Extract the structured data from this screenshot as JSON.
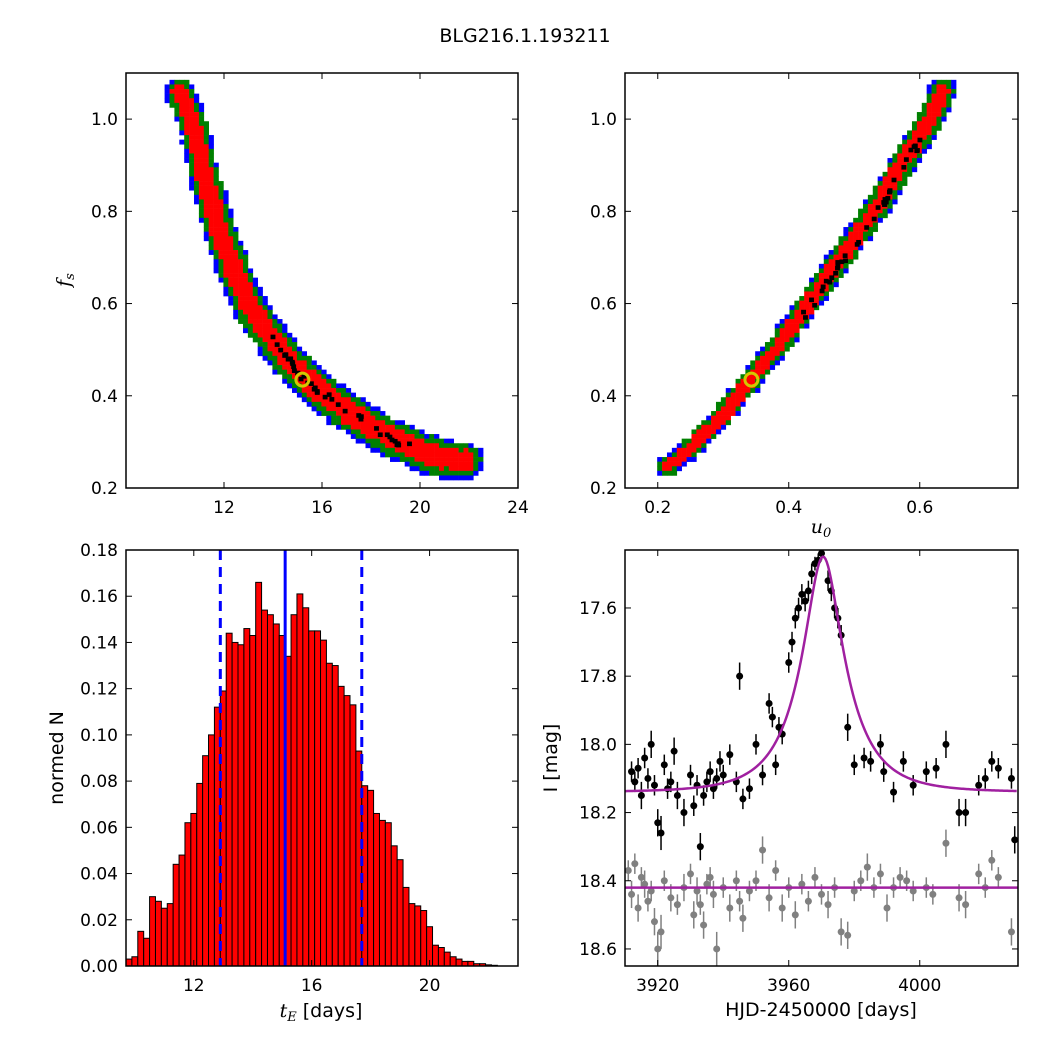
{
  "figure_title": "BLG216.1.193211",
  "colors": {
    "sigma1": "#ff0000",
    "sigma2": "#008000",
    "sigma3": "#0000ff",
    "top_samples": "#000000",
    "best_fit_marker": "#d4c800",
    "histogram_bar": "#ff0000",
    "median_line": "#0000ff",
    "model_curve": "#a020a0",
    "event_points": "#000000",
    "baseline_points": "#808080"
  },
  "chart_data": [
    {
      "type": "heatmap",
      "panel": "top-left",
      "xlabel": "",
      "ylabel": "f_s",
      "xlim": [
        8,
        24
      ],
      "ylim": [
        0.2,
        1.1
      ],
      "x_ticks": [
        "12",
        "16",
        "20",
        "24"
      ],
      "y_ticks": [
        "0.2",
        "0.4",
        "0.6",
        "0.8",
        "1.0"
      ],
      "best_fit": {
        "x": 15.2,
        "y": 0.435
      },
      "ridge": [
        [
          10.2,
          1.06
        ],
        [
          10.8,
          0.98
        ],
        [
          11.2,
          0.88
        ],
        [
          11.6,
          0.8
        ],
        [
          12.0,
          0.73
        ],
        [
          12.5,
          0.66
        ],
        [
          13.0,
          0.6
        ],
        [
          13.6,
          0.55
        ],
        [
          14.3,
          0.5
        ],
        [
          15.0,
          0.455
        ],
        [
          15.8,
          0.415
        ],
        [
          16.8,
          0.375
        ],
        [
          17.8,
          0.34
        ],
        [
          18.8,
          0.31
        ],
        [
          19.8,
          0.285
        ],
        [
          20.8,
          0.265
        ],
        [
          21.8,
          0.26
        ]
      ],
      "confidence_regions": [
        "1 sigma (red)",
        "2 sigma (green)",
        "3 sigma (blue)"
      ]
    },
    {
      "type": "heatmap",
      "panel": "top-right",
      "xlabel": "u_0",
      "ylabel": "",
      "xlim": [
        0.15,
        0.75
      ],
      "ylim": [
        0.2,
        1.1
      ],
      "x_ticks": [
        "0.2",
        "0.4",
        "0.6"
      ],
      "y_ticks": [
        "0.2",
        "0.4",
        "0.6",
        "0.8",
        "1.0"
      ],
      "best_fit": {
        "x": 0.343,
        "y": 0.435
      },
      "ridge": [
        [
          0.215,
          0.245
        ],
        [
          0.26,
          0.3
        ],
        [
          0.3,
          0.36
        ],
        [
          0.343,
          0.435
        ],
        [
          0.39,
          0.52
        ],
        [
          0.44,
          0.62
        ],
        [
          0.49,
          0.72
        ],
        [
          0.54,
          0.82
        ],
        [
          0.58,
          0.92
        ],
        [
          0.62,
          1.01
        ],
        [
          0.635,
          1.06
        ]
      ],
      "confidence_regions": [
        "1 sigma (red)",
        "2 sigma (green)",
        "3 sigma (blue)"
      ]
    },
    {
      "type": "bar",
      "panel": "bottom-left",
      "xlabel": "t_E [days]",
      "ylabel": "normed N",
      "xlim": [
        9.7,
        23.0
      ],
      "ylim": [
        0,
        0.18
      ],
      "bin_width": 0.2,
      "bin_start": 9.7,
      "x_ticks": [
        "12",
        "16",
        "20"
      ],
      "y_ticks": [
        "0.00",
        "0.02",
        "0.04",
        "0.06",
        "0.08",
        "0.10",
        "0.12",
        "0.14",
        "0.16",
        "0.18"
      ],
      "values": [
        0.003,
        0.004,
        0.015,
        0.012,
        0.03,
        0.028,
        0.025,
        0.027,
        0.044,
        0.048,
        0.062,
        0.066,
        0.079,
        0.091,
        0.1,
        0.112,
        0.119,
        0.144,
        0.14,
        0.139,
        0.146,
        0.143,
        0.166,
        0.154,
        0.152,
        0.148,
        0.143,
        0.134,
        0.152,
        0.161,
        0.155,
        0.145,
        0.145,
        0.141,
        0.131,
        0.13,
        0.121,
        0.117,
        0.113,
        0.093,
        0.078,
        0.076,
        0.066,
        0.063,
        0.062,
        0.052,
        0.046,
        0.034,
        0.027,
        0.026,
        0.024,
        0.017,
        0.009,
        0.008,
        0.006,
        0.004,
        0.003,
        0.002,
        0.002,
        0.001,
        0.001,
        0.0005,
        0.0003
      ],
      "median": 15.1,
      "interval": [
        12.9,
        17.7
      ]
    },
    {
      "type": "scatter",
      "panel": "bottom-right",
      "xlabel": "HJD-2450000 [days]",
      "ylabel": "I [mag]",
      "xlim": [
        3910,
        4030
      ],
      "ylim": [
        18.65,
        17.43
      ],
      "x_ticks": [
        "3920",
        "3960",
        "4000"
      ],
      "y_ticks": [
        "17.6",
        "17.8",
        "18.0",
        "18.2",
        "18.4",
        "18.6"
      ],
      "model": {
        "baseline": 18.14,
        "t0": 3970.5,
        "tE": 15.2,
        "u0": 0.343,
        "fs": 0.435
      },
      "event_points": [
        [
          3912,
          18.08,
          0.03
        ],
        [
          3913,
          18.11,
          0.03
        ],
        [
          3914,
          18.07,
          0.03
        ],
        [
          3915,
          18.15,
          0.04
        ],
        [
          3916,
          18.04,
          0.03
        ],
        [
          3917,
          18.1,
          0.03
        ],
        [
          3918,
          18.0,
          0.04
        ],
        [
          3919,
          18.12,
          0.03
        ],
        [
          3920,
          18.23,
          0.04
        ],
        [
          3921,
          18.26,
          0.05
        ],
        [
          3922,
          18.06,
          0.03
        ],
        [
          3923,
          18.13,
          0.03
        ],
        [
          3924,
          18.11,
          0.03
        ],
        [
          3925,
          18.02,
          0.04
        ],
        [
          3926,
          18.15,
          0.04
        ],
        [
          3928,
          18.2,
          0.04
        ],
        [
          3930,
          18.09,
          0.03
        ],
        [
          3931,
          18.18,
          0.03
        ],
        [
          3932,
          18.12,
          0.03
        ],
        [
          3933,
          18.3,
          0.04
        ],
        [
          3934,
          18.15,
          0.03
        ],
        [
          3935,
          18.11,
          0.03
        ],
        [
          3936,
          18.08,
          0.03
        ],
        [
          3937,
          18.13,
          0.03
        ],
        [
          3938,
          18.1,
          0.03
        ],
        [
          3939,
          18.05,
          0.03
        ],
        [
          3940,
          18.09,
          0.03
        ],
        [
          3942,
          18.03,
          0.03
        ],
        [
          3944,
          18.11,
          0.03
        ],
        [
          3945,
          17.8,
          0.04
        ],
        [
          3946,
          18.16,
          0.03
        ],
        [
          3948,
          18.13,
          0.03
        ],
        [
          3950,
          18.0,
          0.03
        ],
        [
          3952,
          18.09,
          0.03
        ],
        [
          3954,
          17.88,
          0.03
        ],
        [
          3955,
          17.92,
          0.03
        ],
        [
          3956,
          18.06,
          0.03
        ],
        [
          3957,
          17.95,
          0.03
        ],
        [
          3958,
          17.97,
          0.03
        ],
        [
          3960,
          17.76,
          0.03
        ],
        [
          3961,
          17.7,
          0.03
        ],
        [
          3962,
          17.63,
          0.03
        ],
        [
          3963,
          17.6,
          0.03
        ],
        [
          3964,
          17.56,
          0.03
        ],
        [
          3965,
          17.58,
          0.03
        ],
        [
          3966,
          17.55,
          0.03
        ],
        [
          3967,
          17.5,
          0.03
        ],
        [
          3968,
          17.47,
          0.02
        ],
        [
          3969,
          17.46,
          0.02
        ],
        [
          3970,
          17.44,
          0.02
        ],
        [
          3972,
          17.52,
          0.03
        ],
        [
          3973,
          17.55,
          0.03
        ],
        [
          3974,
          17.6,
          0.03
        ],
        [
          3975,
          17.63,
          0.03
        ],
        [
          3976,
          17.68,
          0.03
        ],
        [
          3978,
          17.95,
          0.04
        ],
        [
          3980,
          18.06,
          0.03
        ],
        [
          3983,
          18.04,
          0.03
        ],
        [
          3985,
          18.05,
          0.03
        ],
        [
          3988,
          18.0,
          0.03
        ],
        [
          3989,
          18.08,
          0.03
        ],
        [
          3992,
          18.14,
          0.03
        ],
        [
          3995,
          18.05,
          0.03
        ],
        [
          3998,
          18.12,
          0.03
        ],
        [
          4002,
          18.08,
          0.03
        ],
        [
          4005,
          18.07,
          0.03
        ],
        [
          4008,
          18.0,
          0.04
        ],
        [
          4012,
          18.2,
          0.04
        ],
        [
          4014,
          18.2,
          0.04
        ],
        [
          4018,
          18.12,
          0.03
        ],
        [
          4020,
          18.1,
          0.03
        ],
        [
          4022,
          18.05,
          0.03
        ],
        [
          4024,
          18.07,
          0.03
        ],
        [
          4028,
          18.1,
          0.03
        ],
        [
          4029,
          18.28,
          0.04
        ]
      ],
      "baseline_points": [
        [
          3911,
          18.37,
          0.03
        ],
        [
          3912,
          18.44,
          0.04
        ],
        [
          3913,
          18.35,
          0.03
        ],
        [
          3914,
          18.48,
          0.04
        ],
        [
          3915,
          18.39,
          0.03
        ],
        [
          3916,
          18.41,
          0.04
        ],
        [
          3917,
          18.46,
          0.03
        ],
        [
          3918,
          18.43,
          0.03
        ],
        [
          3919,
          18.52,
          0.04
        ],
        [
          3920,
          18.6,
          0.05
        ],
        [
          3921,
          18.55,
          0.05
        ],
        [
          3922,
          18.4,
          0.03
        ],
        [
          3924,
          18.45,
          0.04
        ],
        [
          3926,
          18.47,
          0.03
        ],
        [
          3928,
          18.42,
          0.04
        ],
        [
          3930,
          18.38,
          0.03
        ],
        [
          3931,
          18.5,
          0.04
        ],
        [
          3932,
          18.43,
          0.04
        ],
        [
          3933,
          18.47,
          0.03
        ],
        [
          3934,
          18.53,
          0.04
        ],
        [
          3935,
          18.41,
          0.03
        ],
        [
          3936,
          18.39,
          0.03
        ],
        [
          3937,
          18.44,
          0.04
        ],
        [
          3938,
          18.6,
          0.05
        ],
        [
          3940,
          18.42,
          0.03
        ],
        [
          3942,
          18.48,
          0.04
        ],
        [
          3944,
          18.4,
          0.03
        ],
        [
          3945,
          18.46,
          0.03
        ],
        [
          3946,
          18.51,
          0.04
        ],
        [
          3948,
          18.43,
          0.03
        ],
        [
          3950,
          18.4,
          0.03
        ],
        [
          3952,
          18.31,
          0.04
        ],
        [
          3954,
          18.45,
          0.04
        ],
        [
          3956,
          18.37,
          0.03
        ],
        [
          3958,
          18.48,
          0.04
        ],
        [
          3960,
          18.42,
          0.03
        ],
        [
          3962,
          18.5,
          0.04
        ],
        [
          3964,
          18.41,
          0.03
        ],
        [
          3966,
          18.46,
          0.03
        ],
        [
          3968,
          18.39,
          0.03
        ],
        [
          3970,
          18.44,
          0.03
        ],
        [
          3972,
          18.47,
          0.04
        ],
        [
          3974,
          18.42,
          0.03
        ],
        [
          3976,
          18.55,
          0.04
        ],
        [
          3978,
          18.56,
          0.04
        ],
        [
          3980,
          18.43,
          0.03
        ],
        [
          3982,
          18.4,
          0.03
        ],
        [
          3984,
          18.36,
          0.04
        ],
        [
          3986,
          18.42,
          0.03
        ],
        [
          3988,
          18.38,
          0.03
        ],
        [
          3990,
          18.48,
          0.04
        ],
        [
          3992,
          18.42,
          0.03
        ],
        [
          3994,
          18.39,
          0.03
        ],
        [
          3996,
          18.4,
          0.03
        ],
        [
          3998,
          18.43,
          0.03
        ],
        [
          4002,
          18.42,
          0.03
        ],
        [
          4004,
          18.44,
          0.03
        ],
        [
          4008,
          18.29,
          0.04
        ],
        [
          4012,
          18.45,
          0.04
        ],
        [
          4014,
          18.47,
          0.04
        ],
        [
          4018,
          18.38,
          0.03
        ],
        [
          4020,
          18.42,
          0.03
        ],
        [
          4022,
          18.34,
          0.03
        ],
        [
          4024,
          18.39,
          0.03
        ],
        [
          4028,
          18.55,
          0.04
        ]
      ],
      "baseline_line": 18.42
    }
  ]
}
